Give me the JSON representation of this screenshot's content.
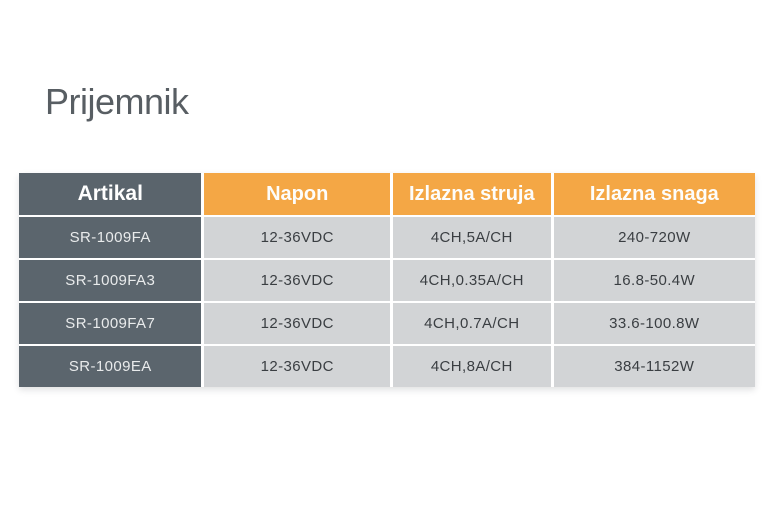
{
  "title": "Prijemnik",
  "colors": {
    "slide_background": "#ffffff",
    "header_dark": "#5a646c",
    "header_orange": "#f4a745",
    "row_label_dark": "#5b656d",
    "cell_light_gray": "#d2d4d6",
    "title_text": "#585e63",
    "cell_text": "#3a3e42",
    "header_text": "#ffffff"
  },
  "table": {
    "columns": [
      {
        "label": "Artikal"
      },
      {
        "label": "Napon"
      },
      {
        "label": "Izlazna struja"
      },
      {
        "label": "Izlazna snaga"
      }
    ],
    "rows": [
      [
        "SR-1009FA",
        "12-36VDC",
        "4CH,5A/CH",
        "240-720W"
      ],
      [
        "SR-1009FA3",
        "12-36VDC",
        "4CH,0.35A/CH",
        "16.8-50.4W"
      ],
      [
        "SR-1009FA7",
        "12-36VDC",
        "4CH,0.7A/CH",
        "33.6-100.8W"
      ],
      [
        "SR-1009EA",
        "12-36VDC",
        "4CH,8A/CH",
        "384-1152W"
      ]
    ]
  }
}
